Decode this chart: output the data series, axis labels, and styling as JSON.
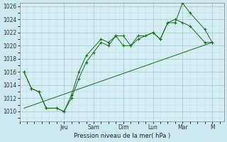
{
  "background_color": "#cce8f0",
  "plot_bg_color": "#d4eef4",
  "grid_color_major": "#a0c8cc",
  "grid_color_minor": "#b8d8dc",
  "line_color": "#1a6b1a",
  "ylabel": "Pression niveau de la mer( hPa )",
  "ylim": [
    1008.5,
    1026.5
  ],
  "yticks": [
    1010,
    1012,
    1014,
    1016,
    1018,
    1020,
    1022,
    1024
  ],
  "day_labels": [
    "Jeu",
    "Sam",
    "Dim",
    "Lun",
    "Mar",
    "M"
  ],
  "day_positions": [
    3.0,
    5.0,
    7.0,
    9.0,
    11.0,
    13.0
  ],
  "xlim": [
    0.0,
    13.8
  ],
  "series1_x": [
    0.3,
    0.8,
    1.3,
    1.8,
    2.5,
    3.0,
    3.5,
    4.0,
    4.5,
    5.5,
    6.0,
    6.5,
    7.0,
    7.5,
    8.0,
    8.5,
    9.0,
    9.5,
    10.0,
    10.5,
    11.0,
    11.5,
    12.5,
    13.0
  ],
  "series1_y": [
    1016,
    1013.5,
    1013,
    1010.5,
    1010.5,
    1010,
    1012.5,
    1016,
    1018.5,
    1021,
    1020.5,
    1021.5,
    1021.5,
    1020,
    1021.5,
    1021.5,
    1022,
    1021,
    1023.5,
    1023.5,
    1026.5,
    1025,
    1022.5,
    1020.5
  ],
  "series2_x": [
    0.3,
    0.8,
    1.3,
    1.8,
    2.5,
    3.0,
    3.5,
    4.0,
    4.5,
    5.0,
    5.5,
    6.0,
    6.5,
    7.0,
    7.5,
    8.0,
    9.0,
    9.5,
    10.0,
    10.5,
    11.0,
    11.5,
    12.5,
    13.0
  ],
  "series2_y": [
    1016,
    1013.5,
    1013,
    1010.5,
    1010.5,
    1010,
    1012,
    1015,
    1017.5,
    1019,
    1020.5,
    1020,
    1021.5,
    1020,
    1020,
    1021,
    1022,
    1021,
    1023.5,
    1024,
    1023.5,
    1023,
    1020.5,
    1020.5
  ],
  "series3_x": [
    0.3,
    13.0
  ],
  "series3_y": [
    1010.5,
    1020.5
  ]
}
